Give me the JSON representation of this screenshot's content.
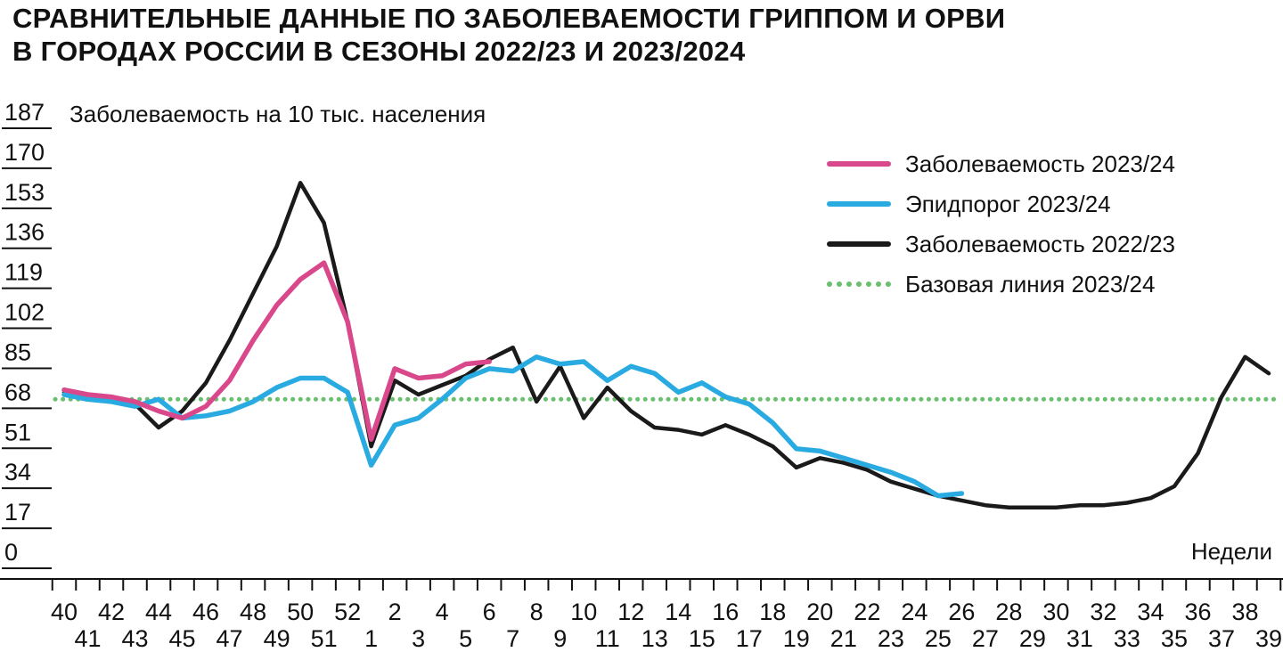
{
  "title": {
    "line1": "СРАВНИТЕЛЬНЫЕ ДАННЫЕ ПО ЗАБОЛЕВАЕМОСТИ ГРИППОМ И ОРВИ",
    "line2": "В ГОРОДАХ РОССИИ В СЕЗОНЫ 2022/23 И 2023/2024"
  },
  "chart_data": {
    "type": "line",
    "title": "СРАВНИТЕЛЬНЫЕ ДАННЫЕ ПО ЗАБОЛЕВАЕМОСТИ ГРИППОМ И ОРВИ В ГОРОДАХ РОССИИ В СЕЗОНЫ 2022/23 И 2023/2024",
    "ylabel": "Заболеваемость на 10 тыс. населения",
    "xlabel": "Недели",
    "ylim": [
      0,
      187
    ],
    "yticks": [
      0,
      17,
      34,
      51,
      68,
      85,
      102,
      119,
      136,
      153,
      170,
      187
    ],
    "grid": false,
    "legend_position": "top-right",
    "categories": [
      "40",
      "41",
      "42",
      "43",
      "44",
      "45",
      "46",
      "47",
      "48",
      "49",
      "50",
      "51",
      "52",
      "1",
      "2",
      "3",
      "4",
      "5",
      "6",
      "7",
      "8",
      "9",
      "10",
      "11",
      "12",
      "13",
      "14",
      "15",
      "16",
      "17",
      "18",
      "19",
      "20",
      "21",
      "22",
      "23",
      "24",
      "25",
      "26",
      "27",
      "28",
      "29",
      "30",
      "31",
      "32",
      "33",
      "34",
      "35",
      "36",
      "37",
      "38",
      "39"
    ],
    "series": [
      {
        "name": "Заболеваемость 2023/24",
        "color": "#d9488b",
        "style": "solid",
        "width": 5.5,
        "values": [
          69,
          67,
          66,
          64,
          60,
          57,
          62,
          73,
          90,
          105,
          116,
          123,
          98,
          48,
          78,
          74,
          75,
          80,
          81,
          null,
          null,
          null,
          null,
          null,
          null,
          null,
          null,
          null,
          null,
          null,
          null,
          null,
          null,
          null,
          null,
          null,
          null,
          null,
          null,
          null,
          null,
          null,
          null,
          null,
          null,
          null,
          null,
          null,
          null,
          null,
          null,
          null
        ]
      },
      {
        "name": "Эпидпорог 2023/24",
        "color": "#29abe2",
        "style": "solid",
        "width": 5.5,
        "values": [
          67,
          65,
          64,
          62,
          65,
          57,
          58,
          60,
          64,
          70,
          74,
          74,
          68,
          37,
          54,
          57,
          65,
          74,
          78,
          77,
          83,
          80,
          81,
          73,
          79,
          76,
          68,
          72,
          66,
          63,
          55,
          44,
          43,
          40,
          37,
          34,
          30,
          24,
          25,
          null,
          null,
          null,
          null,
          null,
          null,
          null,
          null,
          null,
          null,
          null,
          null,
          null
        ]
      },
      {
        "name": "Заболеваемость 2022/23",
        "color": "#1a1a1a",
        "style": "solid",
        "width": 4.5,
        "values": [
          68,
          65,
          64,
          63,
          53,
          60,
          72,
          90,
          110,
          130,
          157,
          140,
          98,
          45,
          73,
          67,
          71,
          75,
          82,
          87,
          64,
          79,
          57,
          70,
          60,
          53,
          52,
          50,
          54,
          50,
          45,
          36,
          40,
          38,
          35,
          30,
          27,
          24,
          22,
          20,
          19,
          19,
          19,
          20,
          20,
          21,
          23,
          28,
          42,
          66,
          83,
          76
        ]
      },
      {
        "name": "Базовая линия 2023/24",
        "color": "#6abf6e",
        "style": "dotted",
        "width": 5,
        "constant": 65
      }
    ]
  }
}
